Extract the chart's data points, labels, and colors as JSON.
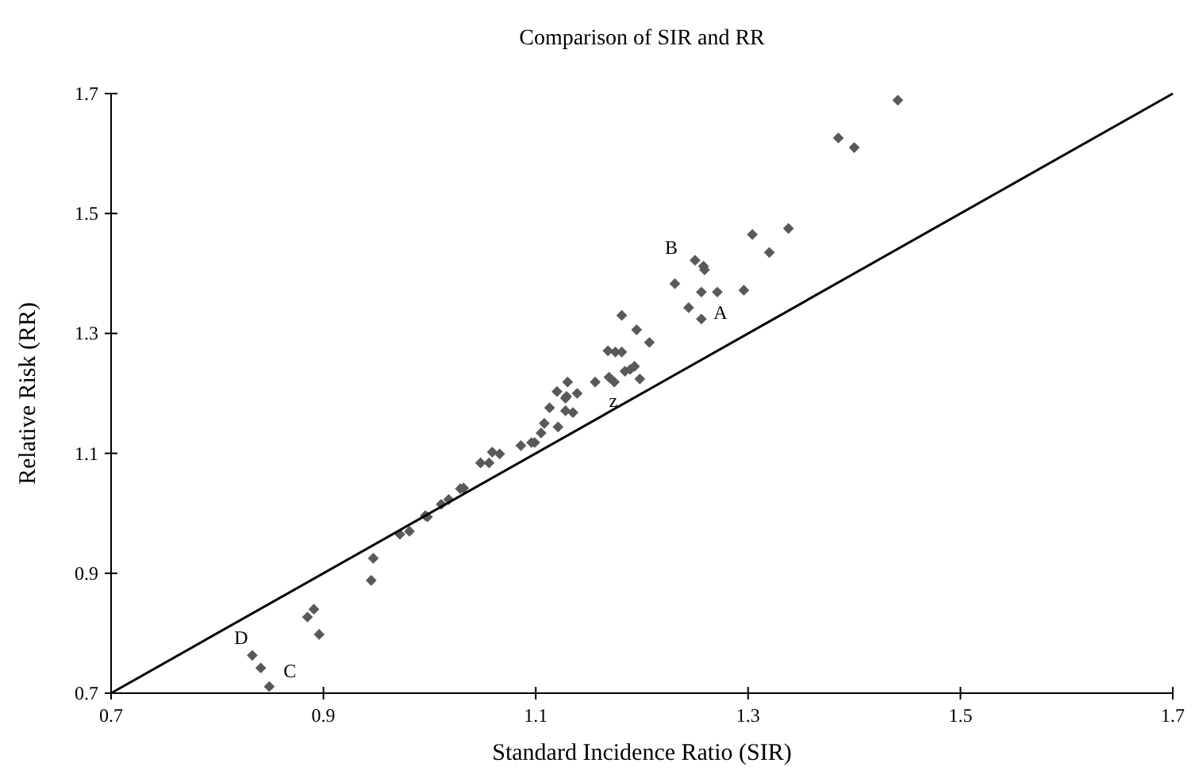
{
  "chart_data": {
    "type": "scatter",
    "title": "Comparison of SIR and RR",
    "xlabel": "Standard Incidence Ratio (SIR)",
    "ylabel": "Relative Risk (RR)",
    "xlim": [
      0.7,
      1.7
    ],
    "ylim": [
      0.7,
      1.7
    ],
    "xticks": [
      0.7,
      0.9,
      1.1,
      1.3,
      1.5,
      1.7
    ],
    "yticks": [
      0.7,
      0.9,
      1.1,
      1.3,
      1.5,
      1.7
    ],
    "grid": false,
    "series": [
      {
        "color": "#595959",
        "marker": "diamond",
        "x": [
          0.833,
          0.841,
          0.849,
          0.885,
          0.891,
          0.896,
          0.945,
          0.947,
          0.972,
          0.981,
          0.996,
          0.998,
          1.011,
          1.018,
          1.029,
          1.032,
          1.048,
          1.056,
          1.059,
          1.066,
          1.086,
          1.096,
          1.099,
          1.105,
          1.108,
          1.113,
          1.121,
          1.128,
          1.135,
          1.128,
          1.12,
          1.13,
          1.129,
          1.139,
          1.156,
          1.169,
          1.174,
          1.168,
          1.175,
          1.181,
          1.184,
          1.189,
          1.193,
          1.198,
          1.181,
          1.195,
          1.207,
          1.231,
          1.244,
          1.25,
          1.258,
          1.259,
          1.256,
          1.256,
          1.271,
          1.296,
          1.304,
          1.32,
          1.338,
          1.385,
          1.4,
          1.441
        ],
        "values": [
          0.763,
          0.742,
          0.711,
          0.827,
          0.84,
          0.798,
          0.888,
          0.925,
          0.965,
          0.97,
          0.996,
          0.994,
          1.015,
          1.023,
          1.041,
          1.042,
          1.084,
          1.084,
          1.102,
          1.099,
          1.113,
          1.118,
          1.118,
          1.134,
          1.15,
          1.176,
          1.144,
          1.171,
          1.168,
          1.192,
          1.203,
          1.219,
          1.195,
          1.2,
          1.219,
          1.227,
          1.219,
          1.271,
          1.269,
          1.269,
          1.237,
          1.24,
          1.245,
          1.224,
          1.33,
          1.306,
          1.285,
          1.383,
          1.343,
          1.422,
          1.412,
          1.406,
          1.369,
          1.324,
          1.369,
          1.372,
          1.465,
          1.435,
          1.475,
          1.626,
          1.61,
          1.689
        ]
      },
      {
        "type": "line",
        "color": "#000000",
        "line_style": "solid",
        "x": [
          0.7,
          1.7
        ],
        "values": [
          0.7,
          1.7
        ]
      }
    ],
    "annotations": [
      {
        "text": "A",
        "x": 1.256,
        "y": 1.324
      },
      {
        "text": "B",
        "x": 1.25,
        "y": 1.422
      },
      {
        "text": "C",
        "x": 0.849,
        "y": 0.711
      },
      {
        "text": "D",
        "x": 0.833,
        "y": 0.763
      },
      {
        "text": "z",
        "x": 1.17,
        "y": 1.17
      }
    ]
  }
}
